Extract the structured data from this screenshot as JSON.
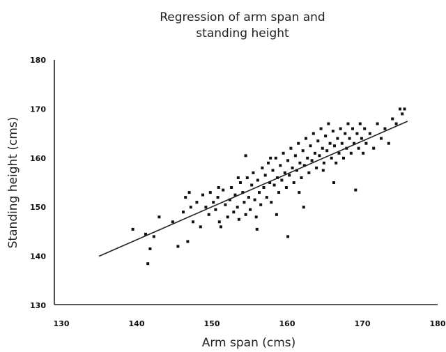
{
  "chart_data": {
    "type": "scatter",
    "title_line1": "Regression of arm span and",
    "title_line2": "standing height",
    "xlabel": "Arm span (cms)",
    "ylabel": "Standing height (cms)",
    "xlim": [
      130,
      180
    ],
    "ylim": [
      130,
      180
    ],
    "xticks": [
      "130",
      "140",
      "150",
      "160",
      "170",
      "180"
    ],
    "yticks": [
      "130",
      "140",
      "150",
      "160",
      "170",
      "180"
    ],
    "grid": false,
    "regression_line": {
      "x": [
        135,
        176
      ],
      "y": [
        140,
        167.5
      ]
    },
    "points": [
      [
        139.5,
        145.5
      ],
      [
        141.2,
        144.5
      ],
      [
        141.8,
        141.5
      ],
      [
        141.5,
        138.5
      ],
      [
        142.3,
        144
      ],
      [
        143,
        148
      ],
      [
        144.8,
        147
      ],
      [
        145.5,
        142
      ],
      [
        146.2,
        149
      ],
      [
        146.8,
        143
      ],
      [
        146.5,
        152
      ],
      [
        147,
        153
      ],
      [
        147.2,
        150
      ],
      [
        147.5,
        147
      ],
      [
        148,
        151
      ],
      [
        148.5,
        146
      ],
      [
        148.8,
        152.5
      ],
      [
        149.2,
        150
      ],
      [
        149.6,
        148.5
      ],
      [
        149.8,
        153
      ],
      [
        150.2,
        151
      ],
      [
        150.5,
        149.5
      ],
      [
        150.8,
        152
      ],
      [
        151,
        147
      ],
      [
        151.2,
        146
      ],
      [
        151.5,
        153.5
      ],
      [
        151.8,
        150.5
      ],
      [
        152.1,
        148
      ],
      [
        152.4,
        151.5
      ],
      [
        152.6,
        154
      ],
      [
        152.9,
        149
      ],
      [
        153.1,
        152.5
      ],
      [
        153.4,
        150
      ],
      [
        153.6,
        147.5
      ],
      [
        153.8,
        155
      ],
      [
        154.1,
        153
      ],
      [
        154.3,
        151
      ],
      [
        154.5,
        148.5
      ],
      [
        154.7,
        156
      ],
      [
        154.9,
        152
      ],
      [
        155.1,
        149.5
      ],
      [
        155.3,
        154.5
      ],
      [
        155.5,
        157
      ],
      [
        155.7,
        151.5
      ],
      [
        155.9,
        148
      ],
      [
        156.1,
        155.5
      ],
      [
        156.3,
        153
      ],
      [
        156.5,
        150.5
      ],
      [
        156.7,
        158
      ],
      [
        156.9,
        154
      ],
      [
        157.1,
        156.5
      ],
      [
        157.3,
        152
      ],
      [
        157.5,
        159
      ],
      [
        157.7,
        155
      ],
      [
        157.9,
        151
      ],
      [
        158.1,
        157.5
      ],
      [
        158.3,
        154.5
      ],
      [
        158.5,
        160
      ],
      [
        158.7,
        156
      ],
      [
        158.9,
        153
      ],
      [
        159.1,
        158.5
      ],
      [
        159.3,
        155.5
      ],
      [
        159.5,
        161
      ],
      [
        159.7,
        157
      ],
      [
        159.9,
        154
      ],
      [
        160.1,
        159.5
      ],
      [
        160.3,
        156.5
      ],
      [
        160.5,
        162
      ],
      [
        160.7,
        158
      ],
      [
        160.9,
        155
      ],
      [
        161.1,
        160.5
      ],
      [
        161.3,
        157.5
      ],
      [
        161.5,
        163
      ],
      [
        161.7,
        159
      ],
      [
        161.9,
        156
      ],
      [
        162.1,
        161.5
      ],
      [
        162.3,
        158.5
      ],
      [
        162.5,
        164
      ],
      [
        162.7,
        160
      ],
      [
        162.9,
        157
      ],
      [
        163.1,
        162.5
      ],
      [
        163.3,
        159.5
      ],
      [
        163.5,
        165
      ],
      [
        163.7,
        161
      ],
      [
        163.9,
        158
      ],
      [
        164.1,
        163.5
      ],
      [
        164.3,
        160.5
      ],
      [
        164.5,
        166
      ],
      [
        164.7,
        162
      ],
      [
        164.9,
        159
      ],
      [
        165.1,
        164.5
      ],
      [
        165.3,
        161.5
      ],
      [
        165.5,
        167
      ],
      [
        165.7,
        163
      ],
      [
        165.9,
        160
      ],
      [
        166.1,
        165.5
      ],
      [
        166.3,
        162.5
      ],
      [
        166.5,
        159
      ],
      [
        166.7,
        164
      ],
      [
        166.9,
        161
      ],
      [
        167.1,
        166
      ],
      [
        167.3,
        163
      ],
      [
        167.5,
        160
      ],
      [
        167.7,
        165
      ],
      [
        167.9,
        162
      ],
      [
        168.1,
        167
      ],
      [
        168.3,
        164
      ],
      [
        168.5,
        161
      ],
      [
        168.7,
        166
      ],
      [
        168.9,
        163
      ],
      [
        169.1,
        153.5
      ],
      [
        169.3,
        165
      ],
      [
        169.5,
        162
      ],
      [
        169.7,
        167
      ],
      [
        169.9,
        164
      ],
      [
        170.1,
        161
      ],
      [
        170.3,
        166
      ],
      [
        170.5,
        163
      ],
      [
        171,
        165
      ],
      [
        171.5,
        162
      ],
      [
        172,
        167
      ],
      [
        172.5,
        164
      ],
      [
        173,
        166
      ],
      [
        173.5,
        163
      ],
      [
        174,
        168
      ],
      [
        174.5,
        167
      ],
      [
        175,
        170
      ],
      [
        175.3,
        169
      ],
      [
        175.6,
        170
      ],
      [
        154.5,
        160.5
      ],
      [
        160.1,
        144
      ],
      [
        158.6,
        148.5
      ],
      [
        162.2,
        150
      ],
      [
        156,
        145.5
      ],
      [
        150.9,
        154
      ],
      [
        153.5,
        156
      ],
      [
        157.8,
        160
      ],
      [
        164.8,
        157.5
      ],
      [
        161.6,
        153
      ],
      [
        166.2,
        155
      ]
    ]
  }
}
